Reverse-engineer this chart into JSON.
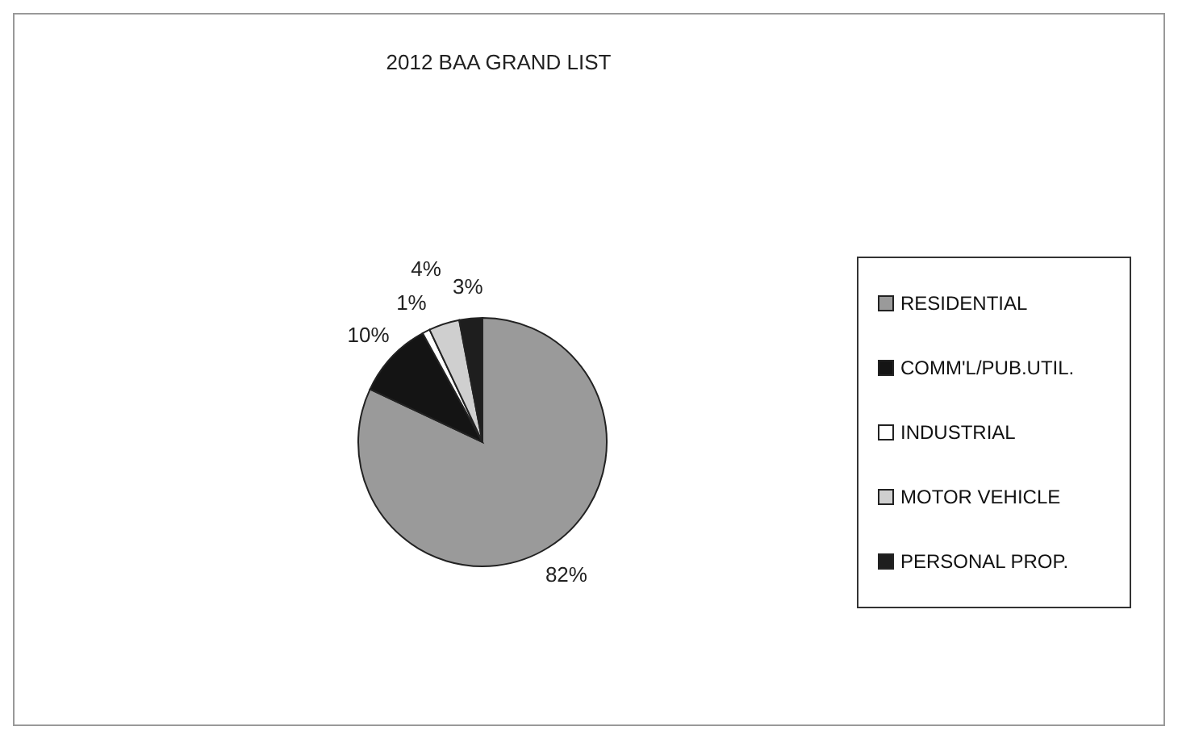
{
  "chart_data": {
    "type": "pie",
    "title": "2012 BAA GRAND LIST",
    "categories": [
      "RESIDENTIAL",
      "COMM'L/PUB.UTIL.",
      "INDUSTRIAL",
      "MOTOR VEHICLE",
      "PERSONAL PROP."
    ],
    "values": [
      82,
      10,
      1,
      4,
      3
    ],
    "colors": [
      "#9a9a9a",
      "#141414",
      "#ffffff",
      "#cfcfcf",
      "#1e1e1e"
    ],
    "value_labels": [
      "82%",
      "10%",
      "1%",
      "4%",
      "3%"
    ],
    "legend": "right"
  }
}
